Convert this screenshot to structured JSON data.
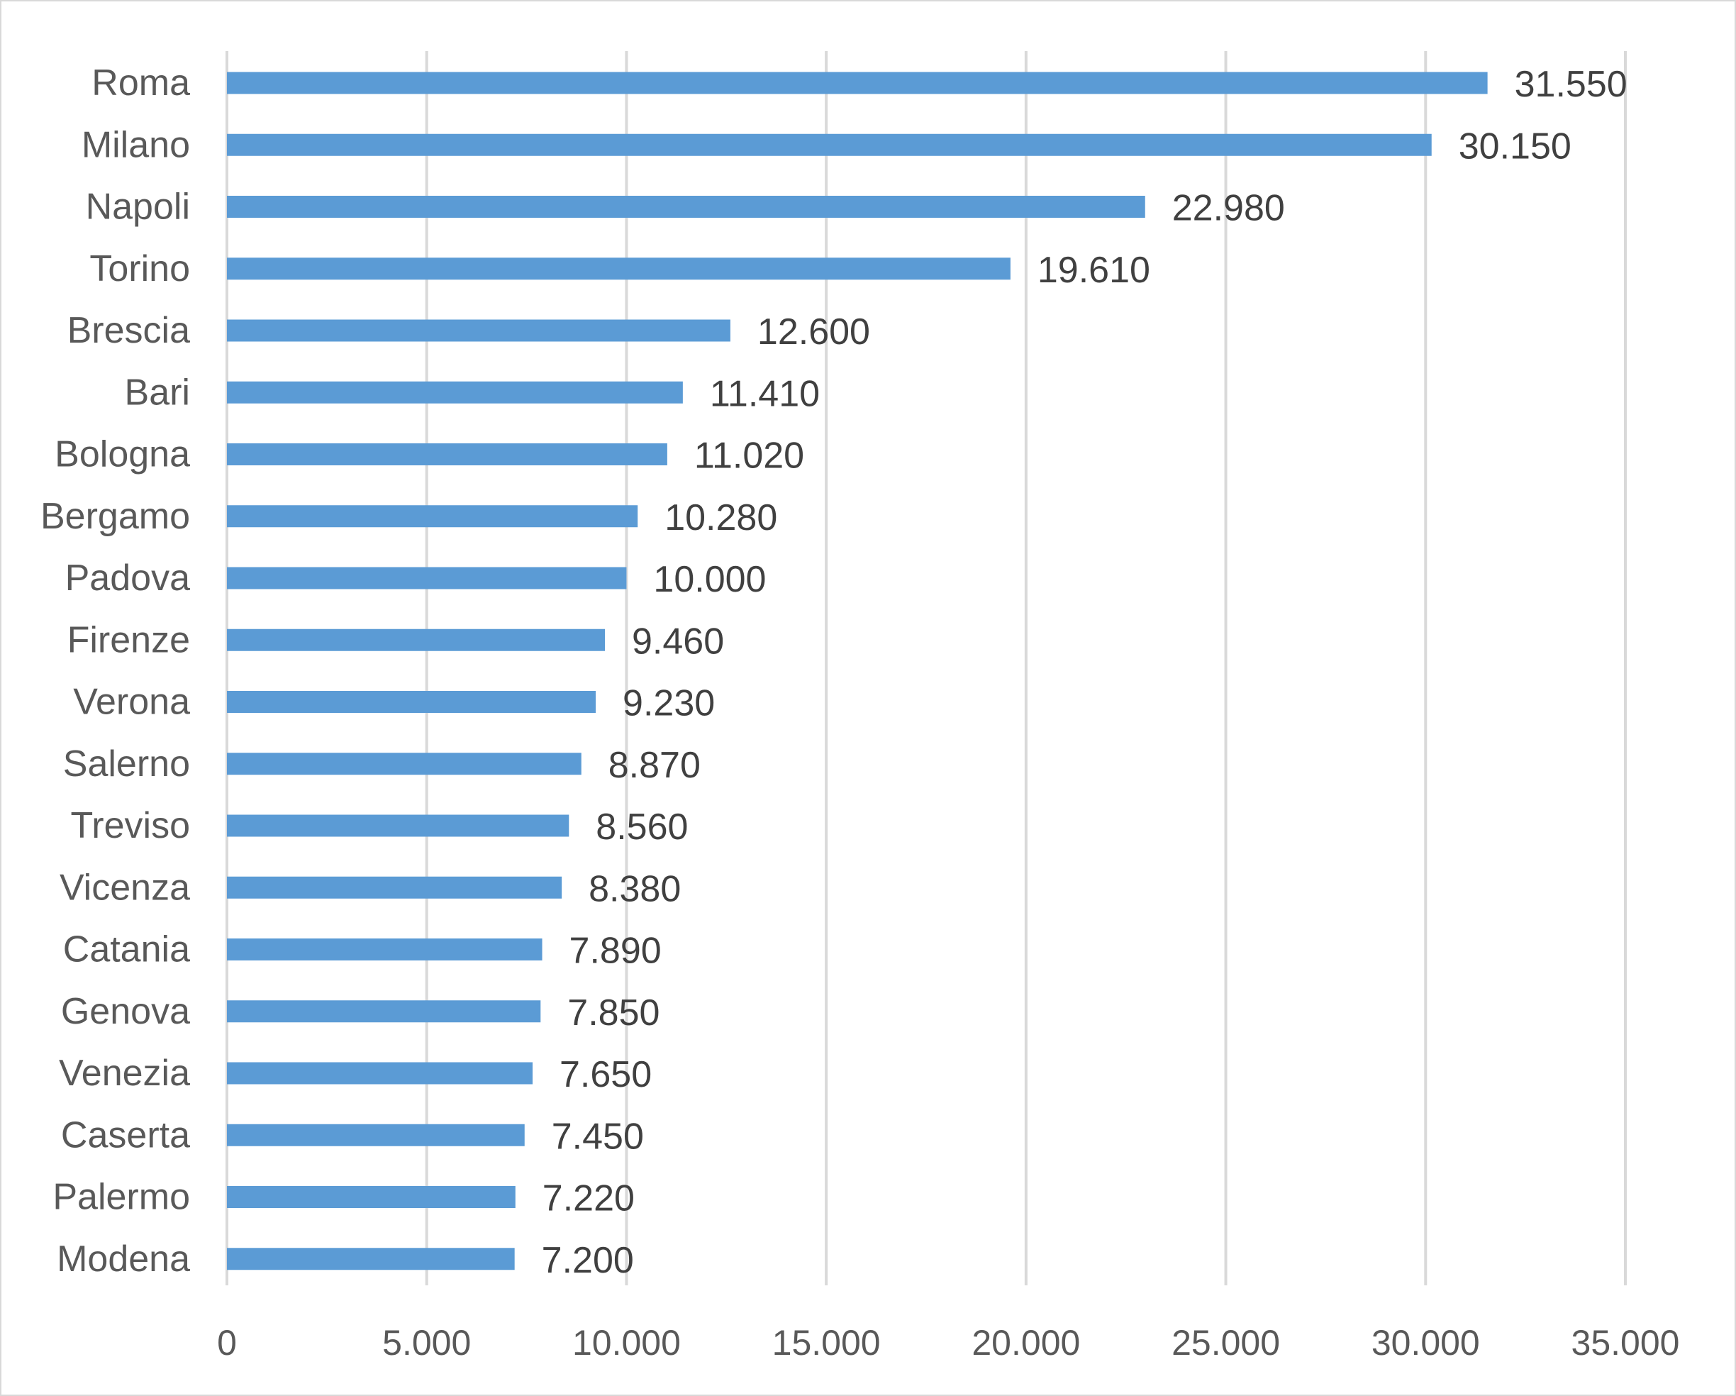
{
  "chart_data": {
    "type": "bar",
    "orientation": "horizontal",
    "categories": [
      "Roma",
      "Milano",
      "Napoli",
      "Torino",
      "Brescia",
      "Bari",
      "Bologna",
      "Bergamo",
      "Padova",
      "Firenze",
      "Verona",
      "Salerno",
      "Treviso",
      "Vicenza",
      "Catania",
      "Genova",
      "Venezia",
      "Caserta",
      "Palermo",
      "Modena"
    ],
    "values": [
      31550,
      30150,
      22980,
      19610,
      12600,
      11410,
      11020,
      10280,
      10000,
      9460,
      9230,
      8870,
      8560,
      8380,
      7890,
      7850,
      7650,
      7450,
      7220,
      7200
    ],
    "data_labels": [
      "31.550",
      "30.150",
      "22.980",
      "19.610",
      "12.600",
      "11.410",
      "11.020",
      "10.280",
      "10.000",
      "9.460",
      "9.230",
      "8.870",
      "8.560",
      "8.380",
      "7.890",
      "7.850",
      "7.650",
      "7.450",
      "7.220",
      "7.200"
    ],
    "x_ticks": [
      0,
      5000,
      10000,
      15000,
      20000,
      25000,
      30000,
      35000
    ],
    "x_tick_labels": [
      "0",
      "5.000",
      "10.000",
      "15.000",
      "20.000",
      "25.000",
      "30.000",
      "35.000"
    ],
    "xlim": [
      0,
      35000
    ],
    "title": "",
    "xlabel": "",
    "ylabel": "",
    "grid": "vertical",
    "legend": "none",
    "bar_color": "#5b9bd5"
  }
}
